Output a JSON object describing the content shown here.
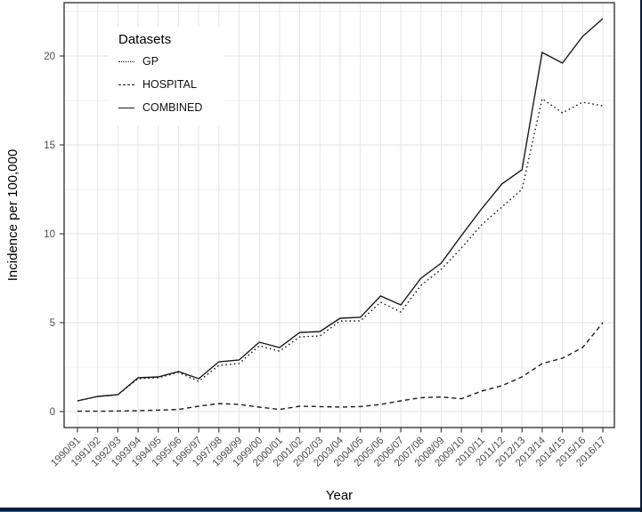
{
  "chart_data": {
    "type": "line",
    "title": "",
    "xlabel": "Year",
    "ylabel": "Incidence per 100,000",
    "x_categories": [
      "1990/91",
      "1991/92",
      "1992/93",
      "1993/94",
      "1994/95",
      "1995/96",
      "1996/97",
      "1997/98",
      "1998/99",
      "1999/00",
      "2000/01",
      "2001/02",
      "2002/03",
      "2003/04",
      "2004/05",
      "2005/06",
      "2006/07",
      "2007/08",
      "2008/09",
      "2009/10",
      "2010/11",
      "2011/12",
      "2012/13",
      "2013/14",
      "2014/15",
      "2015/16",
      "2016/17"
    ],
    "y_ticks": [
      0,
      5,
      10,
      15,
      20
    ],
    "y_minor_ticks": [
      2.5,
      7.5,
      12.5,
      17.5,
      22.5
    ],
    "ylim": [
      -0.9,
      23.0
    ],
    "grid": "on",
    "legend": {
      "title": "Datasets",
      "position": "top-left-inside"
    },
    "series": [
      {
        "name": "GP",
        "line_style": "dotted",
        "color": "#1a1a1a",
        "values": [
          0.6,
          0.85,
          0.95,
          1.85,
          1.9,
          2.2,
          1.7,
          2.6,
          2.7,
          3.7,
          3.4,
          4.2,
          4.25,
          5.1,
          5.1,
          6.15,
          5.6,
          7.1,
          8.0,
          9.2,
          10.5,
          11.5,
          12.5,
          17.6,
          16.8,
          17.4,
          17.2
        ]
      },
      {
        "name": "HOSPITAL",
        "line_style": "dashed",
        "color": "#1a1a1a",
        "values": [
          0.02,
          0.02,
          0.03,
          0.05,
          0.08,
          0.12,
          0.3,
          0.45,
          0.4,
          0.25,
          0.12,
          0.3,
          0.28,
          0.25,
          0.28,
          0.4,
          0.6,
          0.78,
          0.82,
          0.72,
          1.15,
          1.45,
          1.95,
          2.7,
          3.0,
          3.6,
          5.0
        ]
      },
      {
        "name": "COMBINED",
        "line_style": "solid",
        "color": "#1a1a1a",
        "values": [
          0.6,
          0.85,
          0.95,
          1.9,
          1.95,
          2.25,
          1.85,
          2.8,
          2.9,
          3.9,
          3.6,
          4.45,
          4.5,
          5.25,
          5.3,
          6.5,
          6.0,
          7.5,
          8.35,
          9.9,
          11.4,
          12.8,
          13.6,
          20.2,
          19.6,
          21.1,
          22.1
        ]
      }
    ],
    "style": {
      "panel_border_color": "#2a2a2a",
      "grid_major_color": "#e2e2e2",
      "grid_minor_color": "#efefef",
      "grid_vertical_color": "#e6e6e6",
      "tick_color": "#333333",
      "tick_label_color": "#4d4d4d"
    }
  },
  "window": {
    "bottom_border_color": "#0e1a2f",
    "right_border_color": "#0e1a2f"
  }
}
